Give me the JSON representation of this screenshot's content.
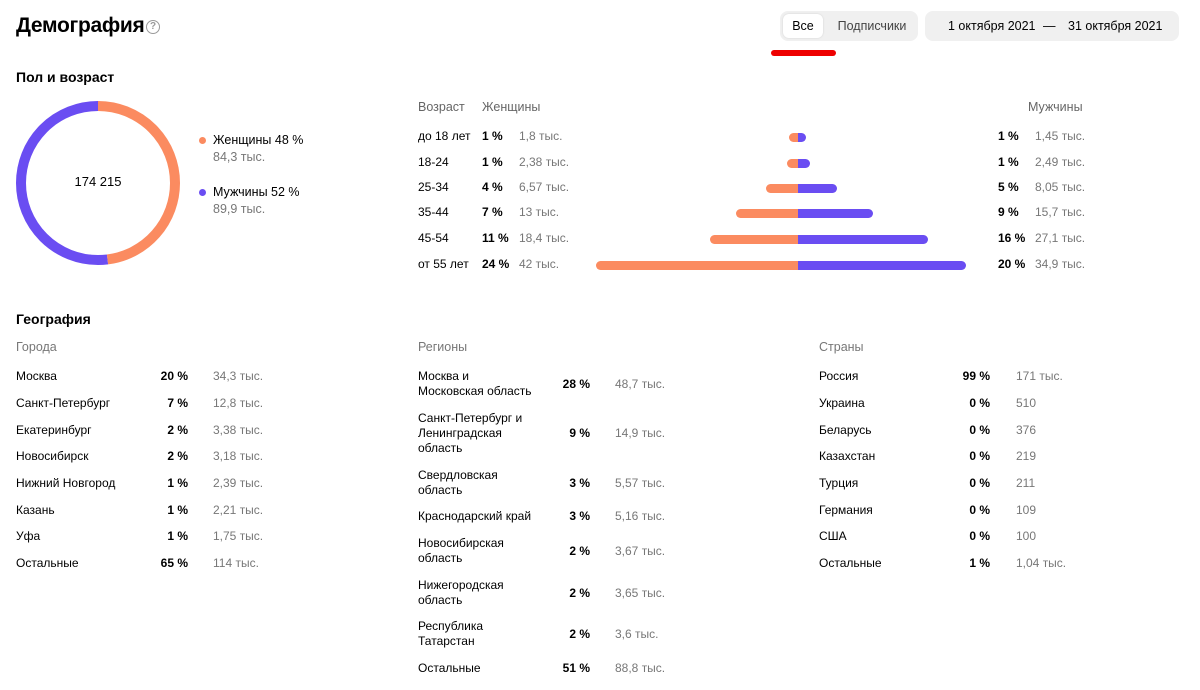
{
  "header": {
    "title": "Демография",
    "help_icon": "?",
    "segments": [
      "Все",
      "Подписчики"
    ],
    "date_from": "1 октября 2021",
    "date_sep": "—",
    "date_to": "31 октября 2021"
  },
  "gender_age": {
    "title": "Пол и возраст",
    "total": "174 215",
    "female": {
      "label": "Женщины 48 %",
      "count": "84,3 тыс.",
      "share": 0.48,
      "color": "#fb8b60"
    },
    "male": {
      "label": "Мужчины 52 %",
      "count": "89,9 тыс.",
      "share": 0.52,
      "color": "#6a4df2"
    },
    "headers": {
      "age": "Возраст",
      "women": "Женщины",
      "men": "Мужчины"
    },
    "rows": [
      {
        "age": "до 18 лет",
        "f_pct": "1 %",
        "f_cnt": "1,8 тыс.",
        "f_val": 1.8,
        "m_pct": "1 %",
        "m_cnt": "1,45 тыс.",
        "m_val": 1.45
      },
      {
        "age": "18-24",
        "f_pct": "1 %",
        "f_cnt": "2,38 тыс.",
        "f_val": 2.38,
        "m_pct": "1 %",
        "m_cnt": "2,49 тыс.",
        "m_val": 2.49
      },
      {
        "age": "25-34",
        "f_pct": "4 %",
        "f_cnt": "6,57 тыс.",
        "f_val": 6.57,
        "m_pct": "5 %",
        "m_cnt": "8,05 тыс.",
        "m_val": 8.05
      },
      {
        "age": "35-44",
        "f_pct": "7 %",
        "f_cnt": "13 тыс.",
        "f_val": 13,
        "m_pct": "9 %",
        "m_cnt": "15,7 тыс.",
        "m_val": 15.7
      },
      {
        "age": "45-54",
        "f_pct": "11 %",
        "f_cnt": "18,4 тыс.",
        "f_val": 18.4,
        "m_pct": "16 %",
        "m_cnt": "27,1 тыс.",
        "m_val": 27.1
      },
      {
        "age": "от 55 лет",
        "f_pct": "24 %",
        "f_cnt": "42 тыс.",
        "f_val": 42,
        "m_pct": "20 %",
        "m_cnt": "34,9 тыс.",
        "m_val": 34.9
      }
    ]
  },
  "geography": {
    "title": "География",
    "cities": {
      "title": "Города",
      "rows": [
        {
          "name": "Москва",
          "pct": "20 %",
          "cnt": "34,3 тыс."
        },
        {
          "name": "Санкт-Петербург",
          "pct": "7 %",
          "cnt": "12,8 тыс."
        },
        {
          "name": "Екатеринбург",
          "pct": "2 %",
          "cnt": "3,38 тыс."
        },
        {
          "name": "Новосибирск",
          "pct": "2 %",
          "cnt": "3,18 тыс."
        },
        {
          "name": "Нижний Новгород",
          "pct": "1 %",
          "cnt": "2,39 тыс."
        },
        {
          "name": "Казань",
          "pct": "1 %",
          "cnt": "2,21 тыс."
        },
        {
          "name": "Уфа",
          "pct": "1 %",
          "cnt": "1,75 тыс."
        },
        {
          "name": "Остальные",
          "pct": "65 %",
          "cnt": "114 тыс."
        }
      ]
    },
    "regions": {
      "title": "Регионы",
      "rows": [
        {
          "name": "Москва и Московская область",
          "pct": "28 %",
          "cnt": "48,7 тыс."
        },
        {
          "name": "Санкт-Петербург и Ленинградская область",
          "pct": "9 %",
          "cnt": "14,9 тыс."
        },
        {
          "name": "Свердловская область",
          "pct": "3 %",
          "cnt": "5,57 тыс."
        },
        {
          "name": "Краснодарский край",
          "pct": "3 %",
          "cnt": "5,16 тыс."
        },
        {
          "name": "Новосибирская область",
          "pct": "2 %",
          "cnt": "3,67 тыс."
        },
        {
          "name": "Нижегородская область",
          "pct": "2 %",
          "cnt": "3,65 тыс."
        },
        {
          "name": "Республика Татарстан",
          "pct": "2 %",
          "cnt": "3,6 тыс."
        },
        {
          "name": "Остальные",
          "pct": "51 %",
          "cnt": "88,8 тыс."
        }
      ]
    },
    "countries": {
      "title": "Страны",
      "rows": [
        {
          "name": "Россия",
          "pct": "99 %",
          "cnt": "171 тыс."
        },
        {
          "name": "Украина",
          "pct": "0 %",
          "cnt": "510"
        },
        {
          "name": "Беларусь",
          "pct": "0 %",
          "cnt": "376"
        },
        {
          "name": "Казахстан",
          "pct": "0 %",
          "cnt": "219"
        },
        {
          "name": "Турция",
          "pct": "0 %",
          "cnt": "211"
        },
        {
          "name": "Германия",
          "pct": "0 %",
          "cnt": "109"
        },
        {
          "name": "США",
          "pct": "0 %",
          "cnt": "100"
        },
        {
          "name": "Остальные",
          "pct": "1 %",
          "cnt": "1,04 тыс."
        }
      ]
    }
  }
}
